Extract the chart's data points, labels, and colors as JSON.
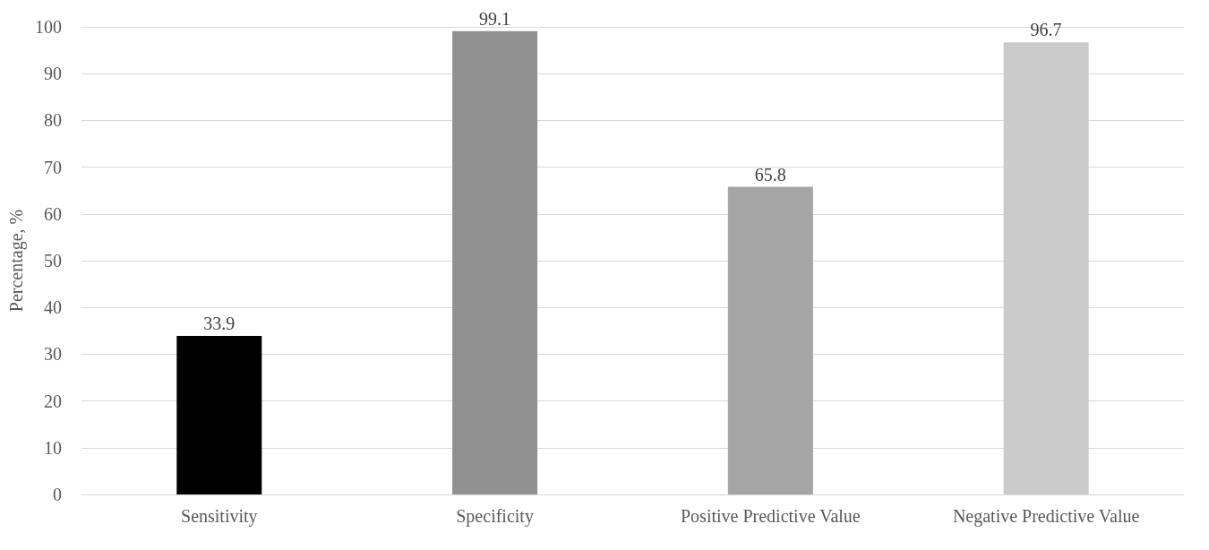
{
  "chart_data": {
    "type": "bar",
    "ylabel": "Percentage, %",
    "categories": [
      "Sensitivity",
      "Specificity",
      "Positive Predictive Value",
      "Negative Predictive Value"
    ],
    "values": [
      33.9,
      99.1,
      65.8,
      96.7
    ],
    "colors": [
      "#000000",
      "#919191",
      "#a5a5a5",
      "#cbcbcb"
    ],
    "ylim": [
      0,
      100
    ],
    "yticks": [
      0,
      10,
      20,
      30,
      40,
      50,
      60,
      70,
      80,
      90,
      100
    ],
    "grid": "y",
    "data_labels": true
  }
}
